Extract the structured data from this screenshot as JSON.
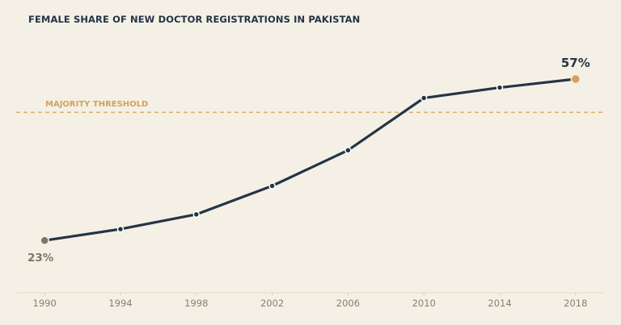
{
  "chart_data": {
    "type": "line",
    "title": "FEMALE SHARE OF NEW DOCTOR REGISTRATIONS IN PAKISTAN",
    "xlabel": "",
    "ylabel": "",
    "x": [
      1990,
      1994,
      1998,
      2002,
      2006,
      2010,
      2014,
      2018
    ],
    "values": [
      23,
      25.4,
      28.5,
      34.5,
      42,
      53,
      55.2,
      57
    ],
    "xlim": [
      1988.5,
      2019.5
    ],
    "ylim": [
      12,
      66
    ],
    "grid": false,
    "reference_line": {
      "label": "MAJORITY THRESHOLD",
      "value": 50
    },
    "start_label": "23%",
    "end_label": "57%",
    "colors": {
      "line": "#243446",
      "start_marker": "#7d7667",
      "end_marker": "#d4a257",
      "reference": "#d4a257",
      "background": "#f5f0e5"
    }
  }
}
